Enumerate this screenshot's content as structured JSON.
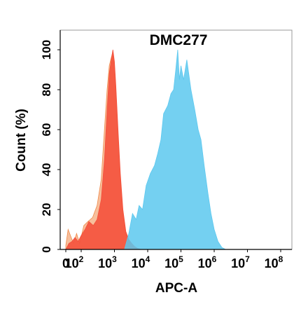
{
  "chart_data": {
    "type": "area",
    "title": "DMC277",
    "xlabel": "APC-A",
    "ylabel": "Count (%)",
    "x_scale": "biexponential",
    "xlim": [
      0,
      100000000
    ],
    "ylim": [
      0,
      105
    ],
    "x_ticks": [
      {
        "value": 0,
        "label": "0"
      },
      {
        "value": 100,
        "label": "10",
        "exp": "2"
      },
      {
        "value": 1000,
        "label": "10",
        "exp": "3"
      },
      {
        "value": 10000,
        "label": "10",
        "exp": "4"
      },
      {
        "value": 100000,
        "label": "10",
        "exp": "5"
      },
      {
        "value": 1000000,
        "label": "10",
        "exp": "6"
      },
      {
        "value": 10000000,
        "label": "10",
        "exp": "7"
      },
      {
        "value": 100000000,
        "label": "10",
        "exp": "8"
      }
    ],
    "y_ticks": [
      "0",
      "20",
      "40",
      "60",
      "80",
      "100"
    ],
    "y_tick_values": [
      0,
      20,
      40,
      60,
      80,
      100
    ],
    "grid": false,
    "legend": "none",
    "series": [
      {
        "color": "#f08a4b",
        "opacity": 0.55,
        "x": [
          0,
          15,
          35,
          50,
          70,
          90,
          120,
          160,
          220,
          300,
          400,
          500,
          600,
          700,
          800,
          900,
          1000,
          1100,
          1300,
          1500,
          1800,
          2200,
          2700,
          3300,
          4000,
          5000,
          6500
        ],
        "y": [
          2,
          10,
          6,
          3,
          8,
          3,
          12,
          14,
          16,
          22,
          35,
          60,
          80,
          92,
          96,
          99,
          92,
          80,
          55,
          35,
          18,
          8,
          4,
          2,
          1,
          0.5,
          0
        ]
      },
      {
        "color": "#f4513c",
        "opacity": 0.9,
        "x": [
          0,
          20,
          40,
          60,
          80,
          100,
          130,
          170,
          230,
          300,
          400,
          500,
          600,
          700,
          800,
          900,
          1000,
          1100,
          1300,
          1500,
          1800,
          2200,
          2700,
          3300,
          4000,
          5000,
          6500
        ],
        "y": [
          0,
          3,
          4,
          6,
          4,
          7,
          10,
          14,
          12,
          15,
          25,
          45,
          70,
          88,
          95,
          100,
          94,
          82,
          58,
          38,
          20,
          9,
          5,
          3,
          1.5,
          0.5,
          0
        ]
      },
      {
        "color": "#5cc8ef",
        "opacity": 0.85,
        "x": [
          2000,
          2700,
          3500,
          4500,
          5500,
          7000,
          9000,
          12000,
          16000,
          20000,
          25000,
          30000,
          40000,
          50000,
          60000,
          70000,
          80000,
          90000,
          100000,
          120000,
          150000,
          200000,
          260000,
          330000,
          400000,
          500000,
          650000,
          800000,
          1000000,
          1300000,
          1700000,
          2200000
        ],
        "y": [
          0,
          8,
          18,
          15,
          22,
          20,
          32,
          38,
          42,
          48,
          55,
          68,
          72,
          78,
          80,
          90,
          100,
          85,
          92,
          85,
          95,
          80,
          70,
          60,
          55,
          42,
          28,
          18,
          10,
          4,
          1,
          0
        ]
      }
    ]
  }
}
